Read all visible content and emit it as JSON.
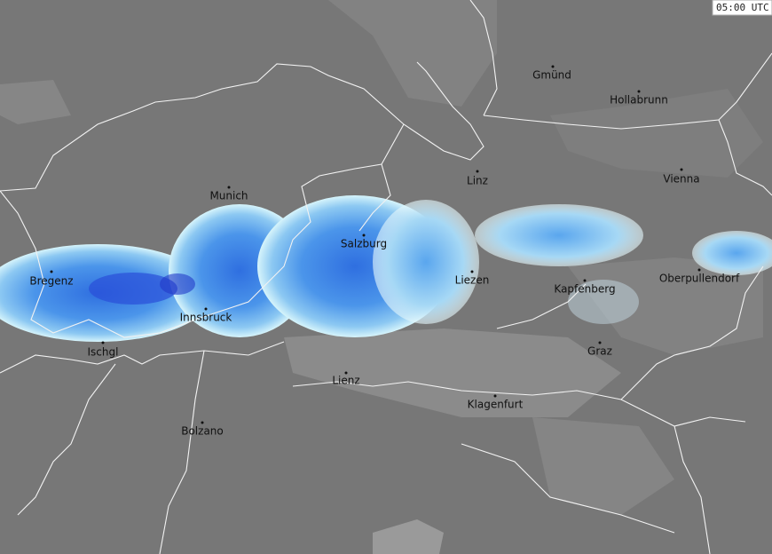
{
  "timestamp": "05:00 UTC",
  "cities": [
    "Gmünd",
    "Hollabrunn",
    "Linz",
    "Vienna",
    "Munich",
    "Salzburg",
    "Bregenz",
    "Liezen",
    "Kapfenberg",
    "Oberpullendorf",
    "Innsbruck",
    "Ischgl",
    "Graz",
    "Lienz",
    "Klagenfurt",
    "Bolzano"
  ]
}
